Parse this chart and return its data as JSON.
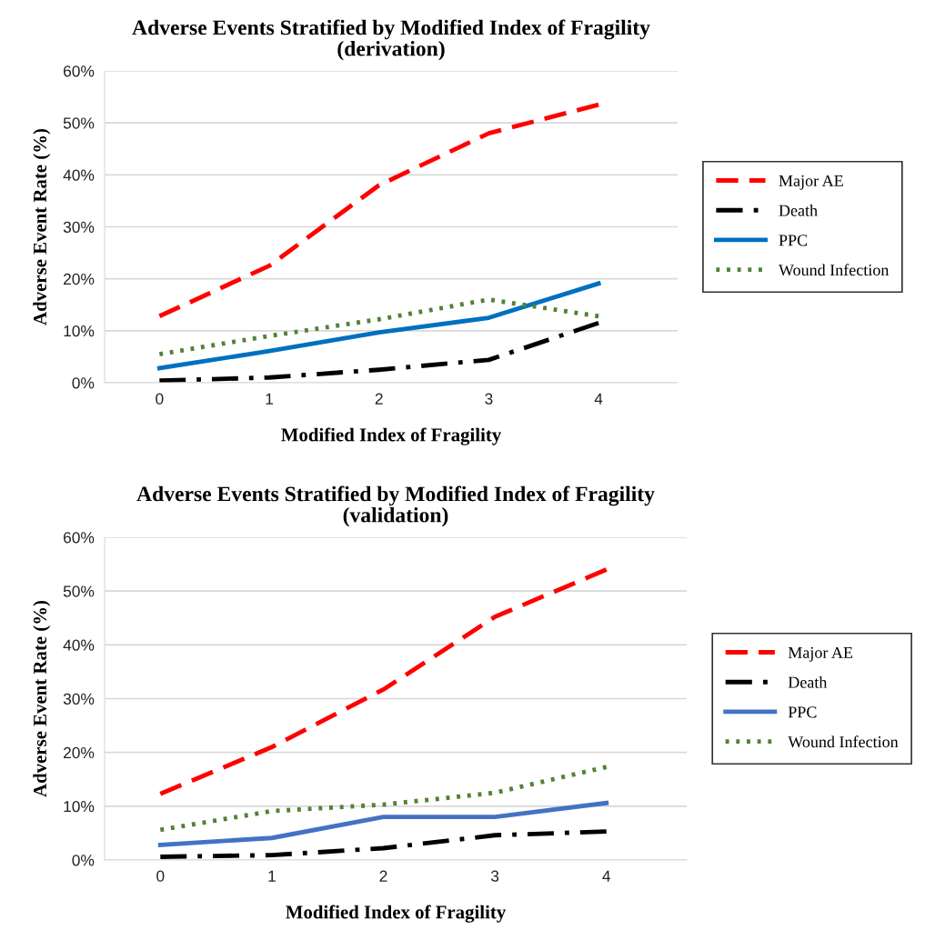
{
  "chart_data": [
    {
      "type": "line",
      "title": "Adverse Events Stratified by Modified Index of Fragility\n(derivation)",
      "xlabel": "Modified Index of Fragility",
      "ylabel": "Adverse Event Rate (%)",
      "categories": [
        "0",
        "1",
        "2",
        "3",
        "4"
      ],
      "series": [
        {
          "name": "Major AE",
          "color": "#ff0000",
          "line_style": "dashed",
          "values": [
            12.8,
            22.5,
            38,
            48,
            53.5
          ]
        },
        {
          "name": "Death",
          "color": "#000000",
          "line_style": "dashdot",
          "values": [
            0.4,
            1.0,
            2.5,
            4.4,
            11.5
          ]
        },
        {
          "name": "PPC",
          "color": "#0070c0",
          "line_style": "solid",
          "values": [
            2.8,
            6.1,
            9.7,
            12.5,
            19.1
          ]
        },
        {
          "name": "Wound Infection",
          "color": "#538135",
          "line_style": "dotted",
          "values": [
            5.5,
            9.0,
            12.2,
            16.0,
            12.8
          ]
        }
      ],
      "ylim": [
        0,
        60
      ],
      "yticks": [
        {
          "value": 0,
          "label": "0%"
        },
        {
          "value": 10,
          "label": "10%"
        },
        {
          "value": 20,
          "label": "20%"
        },
        {
          "value": 30,
          "label": "30%"
        },
        {
          "value": 40,
          "label": "40%"
        },
        {
          "value": 50,
          "label": "50%"
        },
        {
          "value": 60,
          "label": "60%"
        }
      ],
      "grid": "y",
      "legend": "right",
      "marker": "none"
    },
    {
      "type": "line",
      "title": "Adverse Events Stratified by Modified Index of Fragility\n(validation)",
      "xlabel": "Modified Index of Fragility",
      "ylabel": "Adverse Event Rate (%)",
      "categories": [
        "0",
        "1",
        "2",
        "3",
        "4"
      ],
      "series": [
        {
          "name": "Major AE",
          "color": "#ff0000",
          "line_style": "dashed",
          "values": [
            12.3,
            21.0,
            31.7,
            45.2,
            54.0
          ]
        },
        {
          "name": "Death",
          "color": "#000000",
          "line_style": "dashdot",
          "values": [
            0.6,
            0.9,
            2.2,
            4.6,
            5.3
          ]
        },
        {
          "name": "PPC",
          "color": "#4472c4",
          "line_style": "solid",
          "values": [
            2.8,
            4.1,
            8.0,
            8.0,
            10.6
          ]
        },
        {
          "name": "Wound Infection",
          "color": "#538135",
          "line_style": "dotted",
          "values": [
            5.6,
            9.1,
            10.3,
            12.5,
            17.3
          ]
        }
      ],
      "ylim": [
        0,
        60
      ],
      "yticks": [
        {
          "value": 0,
          "label": "0%"
        },
        {
          "value": 10,
          "label": "10%"
        },
        {
          "value": 20,
          "label": "20%"
        },
        {
          "value": 30,
          "label": "30%"
        },
        {
          "value": 40,
          "label": "40%"
        },
        {
          "value": 50,
          "label": "50%"
        },
        {
          "value": 60,
          "label": "60%"
        }
      ],
      "grid": "y",
      "legend": "right",
      "marker": "none"
    }
  ]
}
